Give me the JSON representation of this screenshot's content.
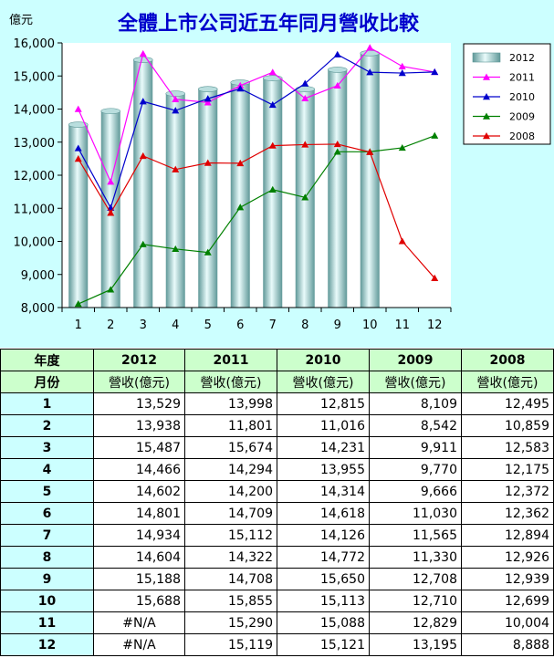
{
  "chart_data": {
    "type": "bar+line",
    "title": "全體上市公司近五年同月營收比較",
    "ylabel": "億元",
    "ylim": [
      8000,
      16000
    ],
    "yticks": [
      "8,000",
      "9,000",
      "10,000",
      "11,000",
      "12,000",
      "13,000",
      "14,000",
      "15,000",
      "16,000"
    ],
    "categories": [
      "1",
      "2",
      "3",
      "4",
      "5",
      "6",
      "7",
      "8",
      "9",
      "10",
      "11",
      "12"
    ],
    "bar_series": {
      "name": "2012",
      "color": "#6fa7a7",
      "values": [
        13529,
        13938,
        15487,
        14466,
        14602,
        14801,
        14934,
        14604,
        15188,
        15688,
        null,
        null
      ]
    },
    "line_series": [
      {
        "name": "2011",
        "color": "#ff00ff",
        "values": [
          13998,
          11801,
          15674,
          14294,
          14200,
          14709,
          15112,
          14322,
          14708,
          15855,
          15290,
          15119
        ]
      },
      {
        "name": "2010",
        "color": "#0000cc",
        "values": [
          12815,
          11016,
          14231,
          13955,
          14314,
          14618,
          14126,
          14772,
          15650,
          15113,
          15088,
          15121
        ]
      },
      {
        "name": "2009",
        "color": "#008000",
        "values": [
          8109,
          8542,
          9911,
          9770,
          9666,
          11030,
          11565,
          11330,
          12708,
          12710,
          12829,
          13195
        ]
      },
      {
        "name": "2008",
        "color": "#e00000",
        "values": [
          12495,
          10859,
          12583,
          12175,
          12372,
          12362,
          12894,
          12926,
          12939,
          12699,
          10004,
          8888
        ]
      }
    ],
    "legend": [
      "2012",
      "2011",
      "2010",
      "2009",
      "2008"
    ],
    "legend_position": "right",
    "grid": false
  },
  "table": {
    "header_label": "年度",
    "subheader_label": "月份",
    "years": [
      "2012",
      "2011",
      "2010",
      "2009",
      "2008"
    ],
    "unit_label": "營收(億元)",
    "rows": [
      {
        "month": "1",
        "values": [
          "13,529",
          "13,998",
          "12,815",
          "8,109",
          "12,495"
        ]
      },
      {
        "month": "2",
        "values": [
          "13,938",
          "11,801",
          "11,016",
          "8,542",
          "10,859"
        ]
      },
      {
        "month": "3",
        "values": [
          "15,487",
          "15,674",
          "14,231",
          "9,911",
          "12,583"
        ]
      },
      {
        "month": "4",
        "values": [
          "14,466",
          "14,294",
          "13,955",
          "9,770",
          "12,175"
        ]
      },
      {
        "month": "5",
        "values": [
          "14,602",
          "14,200",
          "14,314",
          "9,666",
          "12,372"
        ]
      },
      {
        "month": "6",
        "values": [
          "14,801",
          "14,709",
          "14,618",
          "11,030",
          "12,362"
        ]
      },
      {
        "month": "7",
        "values": [
          "14,934",
          "15,112",
          "14,126",
          "11,565",
          "12,894"
        ]
      },
      {
        "month": "8",
        "values": [
          "14,604",
          "14,322",
          "14,772",
          "11,330",
          "12,926"
        ]
      },
      {
        "month": "9",
        "values": [
          "15,188",
          "14,708",
          "15,650",
          "12,708",
          "12,939"
        ]
      },
      {
        "month": "10",
        "values": [
          "15,688",
          "15,855",
          "15,113",
          "12,710",
          "12,699"
        ]
      },
      {
        "month": "11",
        "values": [
          "#N/A",
          "15,290",
          "15,088",
          "12,829",
          "10,004"
        ]
      },
      {
        "month": "12",
        "values": [
          "#N/A",
          "15,119",
          "15,121",
          "13,195",
          "8,888"
        ]
      }
    ]
  }
}
